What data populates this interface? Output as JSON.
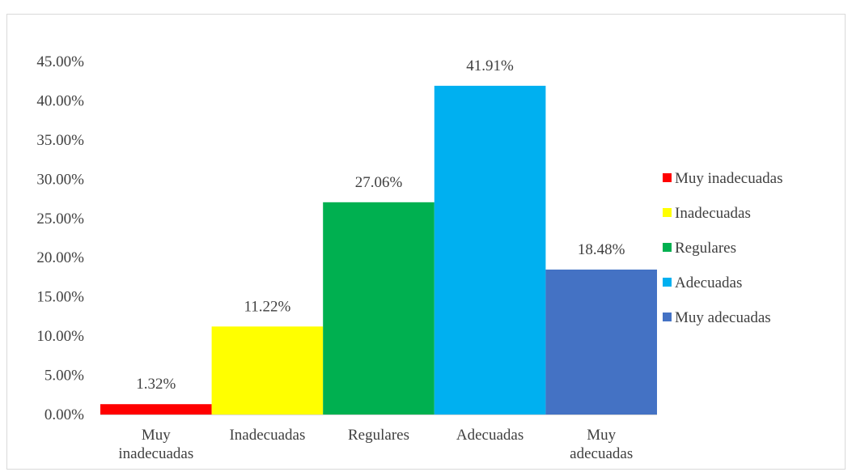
{
  "chart_data": {
    "type": "bar",
    "title": "",
    "xlabel": "",
    "ylabel": "",
    "ylim": [
      0,
      45
    ],
    "y_ticks": [
      "0.00%",
      "5.00%",
      "10.00%",
      "15.00%",
      "20.00%",
      "25.00%",
      "30.00%",
      "35.00%",
      "40.00%",
      "45.00%"
    ],
    "grid": false,
    "legend_position": "right",
    "categories": [
      [
        "Muy",
        "inadecuadas"
      ],
      [
        "Inadecuadas"
      ],
      [
        "Regulares"
      ],
      [
        "Adecuadas"
      ],
      [
        "Muy",
        "adecuadas"
      ]
    ],
    "values": [
      1.32,
      11.22,
      27.06,
      41.91,
      18.48
    ],
    "data_labels": [
      "1.32%",
      "11.22%",
      "27.06%",
      "41.91%",
      "18.48%"
    ],
    "colors": [
      "#ff0000",
      "#ffff00",
      "#00b050",
      "#00b0f0",
      "#4472c4"
    ],
    "legend": [
      "Muy inadecuadas",
      "Inadecuadas",
      "Regulares",
      "Adecuadas",
      "Muy adecuadas"
    ]
  }
}
